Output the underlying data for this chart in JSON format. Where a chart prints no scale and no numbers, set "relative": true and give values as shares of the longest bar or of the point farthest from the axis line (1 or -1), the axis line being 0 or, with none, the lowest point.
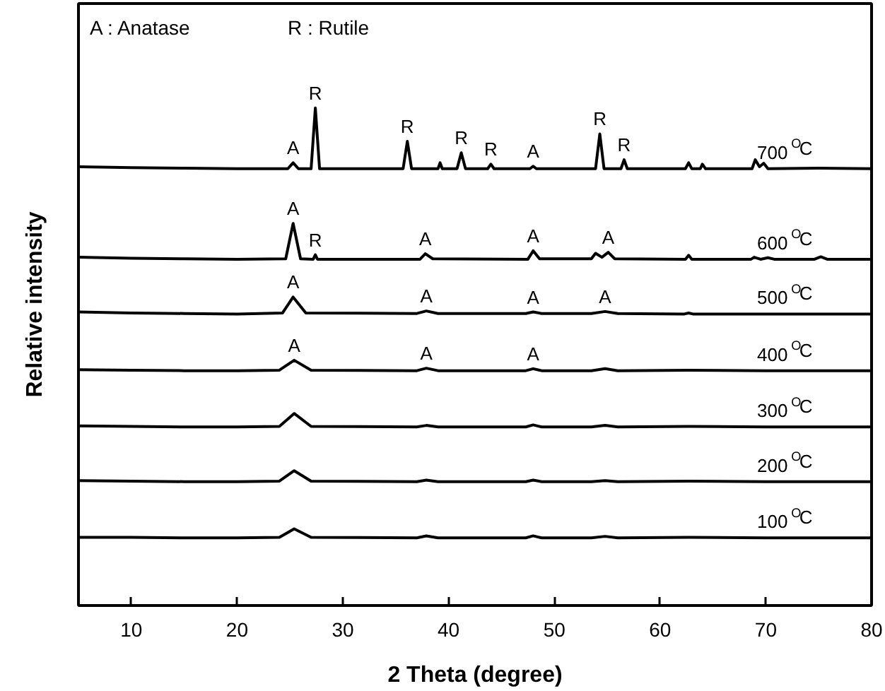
{
  "chart_data": {
    "type": "line",
    "relative": true,
    "xlabel": "2 Theta (degree)",
    "ylabel": "Relative intensity",
    "xlim": [
      5,
      80
    ],
    "xticks": [
      10,
      20,
      30,
      40,
      50,
      60,
      70,
      80
    ],
    "grid": false,
    "marker": "none",
    "line_style": "solid",
    "annotations": [
      "A : Anatase",
      "R : Rutile",
      {
        "text": "A",
        "x": 25.3,
        "y": 0.89
      },
      {
        "text": "R",
        "x": 27.4,
        "y": 1.0
      },
      {
        "text": "R",
        "x": 36.1,
        "y": 0.933
      },
      {
        "text": "R",
        "x": 41.2,
        "y": 0.91
      },
      {
        "text": "R",
        "x": 44.0,
        "y": 0.887
      },
      {
        "text": "A",
        "x": 48.0,
        "y": 0.883
      },
      {
        "text": "R",
        "x": 54.3,
        "y": 0.948
      },
      {
        "text": "R",
        "x": 56.6,
        "y": 0.896
      },
      {
        "text": "A",
        "x": 25.3,
        "y": 0.768
      },
      {
        "text": "R",
        "x": 27.4,
        "y": 0.705
      },
      {
        "text": "A",
        "x": 37.8,
        "y": 0.707
      },
      {
        "text": "A",
        "x": 48.0,
        "y": 0.713
      },
      {
        "text": "A",
        "x": 55.1,
        "y": 0.71
      },
      {
        "text": "A",
        "x": 25.3,
        "y": 0.62
      },
      {
        "text": "A",
        "x": 37.9,
        "y": 0.592
      },
      {
        "text": "A",
        "x": 48.0,
        "y": 0.59
      },
      {
        "text": "A",
        "x": 54.8,
        "y": 0.591
      },
      {
        "text": "A",
        "x": 25.4,
        "y": 0.493
      },
      {
        "text": "A",
        "x": 37.9,
        "y": 0.477
      },
      {
        "text": "A",
        "x": 48.0,
        "y": 0.476
      }
    ],
    "series": [
      {
        "name": "700$^{O}$C",
        "color": "#000000",
        "x": [
          5,
          10,
          15,
          20,
          24.8,
          25.3,
          25.8,
          27.0,
          27.4,
          27.8,
          35.7,
          36.1,
          36.5,
          39.0,
          39.2,
          39.4,
          40.8,
          41.2,
          41.6,
          43.7,
          44.0,
          44.3,
          47.7,
          48.0,
          48.3,
          53.9,
          54.3,
          54.7,
          56.3,
          56.6,
          56.9,
          62.4,
          62.7,
          63.0,
          63.8,
          64.0,
          64.3,
          68.7,
          69.0,
          69.4,
          69.8,
          70.2,
          75,
          80
        ],
        "values": [
          0.882,
          0.88,
          0.879,
          0.878,
          0.878,
          0.89,
          0.878,
          0.878,
          1.0,
          0.878,
          0.878,
          0.933,
          0.878,
          0.878,
          0.89,
          0.878,
          0.878,
          0.91,
          0.878,
          0.878,
          0.887,
          0.878,
          0.878,
          0.883,
          0.878,
          0.878,
          0.948,
          0.878,
          0.878,
          0.896,
          0.878,
          0.878,
          0.89,
          0.878,
          0.878,
          0.887,
          0.878,
          0.878,
          0.896,
          0.882,
          0.889,
          0.878,
          0.879,
          0.878
        ]
      },
      {
        "name": "600$^{O}$C",
        "color": "#000000",
        "x": [
          5,
          10,
          15,
          20,
          24.6,
          25.3,
          26.0,
          27.2,
          27.4,
          27.6,
          37.3,
          37.8,
          38.5,
          47.5,
          48.0,
          48.6,
          53.5,
          53.9,
          54.5,
          55.1,
          55.7,
          62.4,
          62.7,
          63.0,
          68.6,
          68.9,
          69.5,
          70.2,
          70.8,
          74.6,
          75.2,
          75.8,
          80
        ],
        "values": [
          0.7,
          0.698,
          0.697,
          0.696,
          0.697,
          0.768,
          0.697,
          0.696,
          0.705,
          0.696,
          0.696,
          0.707,
          0.697,
          0.696,
          0.713,
          0.697,
          0.697,
          0.708,
          0.7,
          0.71,
          0.697,
          0.696,
          0.704,
          0.696,
          0.696,
          0.7,
          0.696,
          0.699,
          0.696,
          0.696,
          0.701,
          0.696,
          0.696
        ]
      },
      {
        "name": "500$^{O}$C",
        "color": "#000000",
        "x": [
          5,
          10,
          15,
          20,
          24.3,
          25.3,
          26.5,
          37.0,
          37.9,
          39.0,
          47.3,
          48.0,
          48.8,
          53.5,
          54.8,
          56.0,
          62.3,
          62.7,
          63.1,
          70,
          80
        ],
        "values": [
          0.59,
          0.588,
          0.587,
          0.586,
          0.588,
          0.62,
          0.588,
          0.587,
          0.592,
          0.587,
          0.587,
          0.59,
          0.587,
          0.587,
          0.591,
          0.587,
          0.586,
          0.588,
          0.586,
          0.586,
          0.586
        ]
      },
      {
        "name": "400$^{O}$C",
        "color": "#000000",
        "x": [
          5,
          10,
          15,
          20,
          24.0,
          25.4,
          27.0,
          37.0,
          37.9,
          39.0,
          47.3,
          48.0,
          48.8,
          53.5,
          54.8,
          56.0,
          62.7,
          70,
          80
        ],
        "values": [
          0.474,
          0.473,
          0.472,
          0.472,
          0.473,
          0.493,
          0.473,
          0.472,
          0.477,
          0.472,
          0.472,
          0.476,
          0.472,
          0.472,
          0.476,
          0.472,
          0.473,
          0.472,
          0.472
        ]
      },
      {
        "name": "300$^{O}$C",
        "color": "#000000",
        "x": [
          5,
          10,
          15,
          20,
          24.0,
          25.4,
          27.0,
          37.0,
          37.9,
          39.0,
          47.3,
          48.0,
          48.8,
          53.5,
          54.8,
          56.0,
          62.7,
          70,
          80
        ],
        "values": [
          0.361,
          0.36,
          0.359,
          0.359,
          0.36,
          0.386,
          0.36,
          0.359,
          0.362,
          0.359,
          0.359,
          0.363,
          0.359,
          0.359,
          0.362,
          0.359,
          0.36,
          0.359,
          0.359
        ]
      },
      {
        "name": "200$^{O}$C",
        "color": "#000000",
        "x": [
          5,
          10,
          15,
          20,
          24.0,
          25.4,
          27.0,
          37.0,
          37.9,
          39.0,
          47.3,
          48.0,
          48.8,
          53.5,
          54.8,
          56.0,
          62.7,
          70,
          80
        ],
        "values": [
          0.251,
          0.25,
          0.249,
          0.249,
          0.25,
          0.271,
          0.25,
          0.249,
          0.252,
          0.249,
          0.249,
          0.252,
          0.249,
          0.249,
          0.251,
          0.249,
          0.25,
          0.249,
          0.249
        ]
      },
      {
        "name": "100$^{O}$C",
        "color": "#000000",
        "x": [
          5,
          10,
          15,
          20,
          24.0,
          25.4,
          27.0,
          37.0,
          37.9,
          39.0,
          47.3,
          48.0,
          48.8,
          53.5,
          54.8,
          56.0,
          62.7,
          70,
          80
        ],
        "values": [
          0.137,
          0.137,
          0.136,
          0.136,
          0.137,
          0.154,
          0.137,
          0.136,
          0.14,
          0.136,
          0.136,
          0.14,
          0.136,
          0.136,
          0.139,
          0.136,
          0.137,
          0.136,
          0.136
        ]
      }
    ]
  }
}
